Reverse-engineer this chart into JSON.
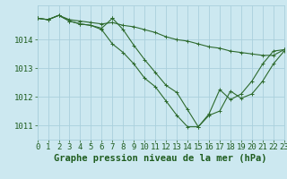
{
  "xlabel": "Graphe pression niveau de la mer (hPa)",
  "xlim": [
    0,
    23
  ],
  "ylim": [
    1010.5,
    1015.2
  ],
  "yticks": [
    1011,
    1012,
    1013,
    1014
  ],
  "xticks": [
    0,
    1,
    2,
    3,
    4,
    5,
    6,
    7,
    8,
    9,
    10,
    11,
    12,
    13,
    14,
    15,
    16,
    17,
    18,
    19,
    20,
    21,
    22,
    23
  ],
  "bg_color": "#cce8f0",
  "grid_color": "#aad0dc",
  "line_color": "#2d6a2d",
  "series": [
    {
      "x": [
        0,
        1,
        2,
        3,
        4,
        5,
        6,
        7,
        8,
        9,
        10,
        11,
        12,
        13,
        14,
        15,
        16,
        17,
        18,
        19,
        20,
        21,
        22,
        23
      ],
      "y": [
        1014.75,
        1014.7,
        1014.85,
        1014.7,
        1014.65,
        1014.6,
        1014.55,
        1014.6,
        1014.5,
        1014.45,
        1014.35,
        1014.25,
        1014.1,
        1014.0,
        1013.95,
        1013.85,
        1013.75,
        1013.7,
        1013.6,
        1013.55,
        1013.5,
        1013.45,
        1013.45,
        1013.65
      ]
    },
    {
      "x": [
        0,
        1,
        2,
        3,
        4,
        5,
        6,
        7,
        8,
        9,
        10,
        11,
        12,
        13,
        14,
        15,
        16,
        17,
        18,
        19,
        20,
        21,
        22,
        23
      ],
      "y": [
        1014.75,
        1014.7,
        1014.85,
        1014.65,
        1014.55,
        1014.5,
        1014.35,
        1013.85,
        1013.55,
        1013.15,
        1012.65,
        1012.35,
        1011.85,
        1011.35,
        1010.95,
        1010.95,
        1011.35,
        1011.5,
        1012.2,
        1011.95,
        1012.1,
        1012.55,
        1013.15,
        1013.6
      ]
    },
    {
      "x": [
        0,
        1,
        2,
        3,
        4,
        5,
        6,
        7
      ],
      "y": [
        1014.75,
        1014.7,
        1014.85,
        1014.65,
        1014.55,
        1014.5,
        1014.4,
        1014.75
      ]
    },
    {
      "x": [
        7,
        8,
        9,
        10,
        11,
        12,
        13,
        14,
        15,
        16,
        17,
        18,
        19,
        20,
        21,
        22,
        23
      ],
      "y": [
        1014.75,
        1014.35,
        1013.8,
        1013.3,
        1012.85,
        1012.4,
        1012.15,
        1011.55,
        1010.95,
        1011.4,
        1012.25,
        1011.9,
        1012.1,
        1012.55,
        1013.15,
        1013.6,
        1013.65
      ]
    }
  ],
  "font_color": "#1e5c1e",
  "xlabel_fontsize": 7.5,
  "tick_fontsize": 6.5
}
